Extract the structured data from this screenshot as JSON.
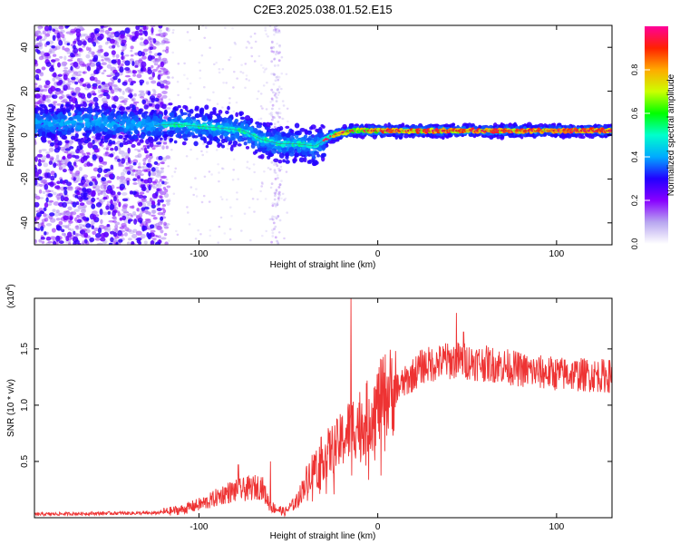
{
  "figure": {
    "title": "C2E3.2025.038.01.52.E15"
  },
  "chart_data": [
    {
      "type": "heatmap",
      "xlabel": "Height of straight line (km)",
      "ylabel": "Frequency (Hz)",
      "xlim": [
        -192,
        131
      ],
      "ylim": [
        -50,
        50
      ],
      "xticks": [
        -100,
        0,
        100
      ],
      "yticks": [
        -40,
        -20,
        0,
        20,
        40
      ],
      "grid": false,
      "ridge": [
        [
          -190,
          5
        ],
        [
          -160,
          6
        ],
        [
          -130,
          4
        ],
        [
          -115,
          5
        ],
        [
          -100,
          4
        ],
        [
          -85,
          3
        ],
        [
          -75,
          2
        ],
        [
          -65,
          -2
        ],
        [
          -55,
          -4
        ],
        [
          -45,
          -4
        ],
        [
          -35,
          -5
        ],
        [
          -25,
          0
        ],
        [
          -15,
          2
        ],
        [
          -5,
          2
        ],
        [
          10,
          2
        ],
        [
          40,
          2
        ],
        [
          80,
          2
        ],
        [
          131,
          2
        ]
      ],
      "colorbar": {
        "label": "Normalized spectral amplitude",
        "range": [
          0,
          1
        ],
        "ticks": [
          "0.0",
          "0.2",
          "0.4",
          "0.6",
          "0.8"
        ],
        "colors": [
          "#ffffff",
          "#b8a6f0",
          "#8800ff",
          "#2200ff",
          "#00aaff",
          "#00ffcc",
          "#00ff00",
          "#ccff00",
          "#ffaa00",
          "#ff2200",
          "#ff0099"
        ]
      }
    },
    {
      "type": "line",
      "xlabel": "Height of straight line (km)",
      "ylabel": "SNR (10 * v/v)",
      "multiplier": "(x10",
      "multiplier_exp": "4",
      "multiplier_close": ")",
      "xlim": [
        -192,
        131
      ],
      "ylim": [
        0,
        1.95
      ],
      "xticks": [
        -100,
        0,
        100
      ],
      "yticks": [
        0.5,
        1.0,
        1.5
      ],
      "ytick_labels": [
        "0.5",
        "1.0",
        "1.5"
      ],
      "color": "#ee3333",
      "envelope": [
        [
          -192,
          0.03
        ],
        [
          -150,
          0.04
        ],
        [
          -125,
          0.04
        ],
        [
          -110,
          0.07
        ],
        [
          -95,
          0.14
        ],
        [
          -85,
          0.22
        ],
        [
          -75,
          0.25
        ],
        [
          -65,
          0.28
        ],
        [
          -60,
          0.1
        ],
        [
          -52,
          0.05
        ],
        [
          -45,
          0.15
        ],
        [
          -38,
          0.4
        ],
        [
          -30,
          0.55
        ],
        [
          -22,
          0.65
        ],
        [
          -15,
          0.8
        ],
        [
          -5,
          0.9
        ],
        [
          5,
          1.1
        ],
        [
          15,
          1.2
        ],
        [
          25,
          1.35
        ],
        [
          35,
          1.38
        ],
        [
          45,
          1.4
        ],
        [
          55,
          1.38
        ],
        [
          70,
          1.35
        ],
        [
          85,
          1.3
        ],
        [
          100,
          1.28
        ],
        [
          115,
          1.27
        ],
        [
          131,
          1.26
        ]
      ],
      "spikes": [
        [
          -15,
          1.95
        ],
        [
          44,
          1.82
        ],
        [
          48,
          1.65
        ],
        [
          38,
          1.55
        ],
        [
          -60,
          0.5
        ],
        [
          -78,
          0.47
        ]
      ]
    }
  ]
}
